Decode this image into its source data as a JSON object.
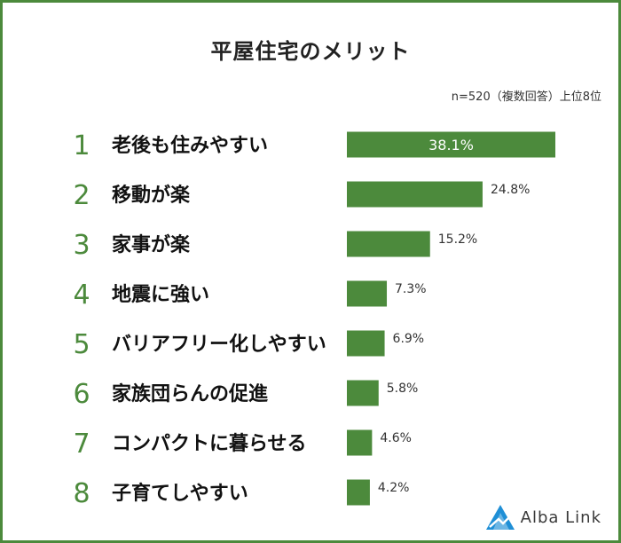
{
  "title": "平屋住宅のメリット",
  "note": "n=520（複数回答）上位8位",
  "logo_text": "Alba Link",
  "colors": {
    "bar": "#4c8a3c",
    "rank": "#4c8a3c",
    "border": "#4c8a3c",
    "logo_blue": "#1f8fd6"
  },
  "chart_data": {
    "type": "bar",
    "orientation": "horizontal",
    "categories": [
      "老後も住みやすい",
      "移動が楽",
      "家事が楽",
      "地震に強い",
      "バリアフリー化しやすい",
      "家族団らんの促進",
      "コンパクトに暮らせる",
      "子育てしやすい"
    ],
    "ranks": [
      "1",
      "2",
      "3",
      "4",
      "5",
      "6",
      "7",
      "8"
    ],
    "values": [
      38.1,
      24.8,
      15.2,
      7.3,
      6.9,
      5.8,
      4.6,
      4.2
    ],
    "value_labels": [
      "38.1%",
      "24.8%",
      "15.2%",
      "7.3%",
      "6.9%",
      "5.8%",
      "4.6%",
      "4.2%"
    ],
    "unit": "%",
    "title": "平屋住宅のメリット",
    "xlim": [
      0,
      38.1
    ],
    "grid": false
  }
}
